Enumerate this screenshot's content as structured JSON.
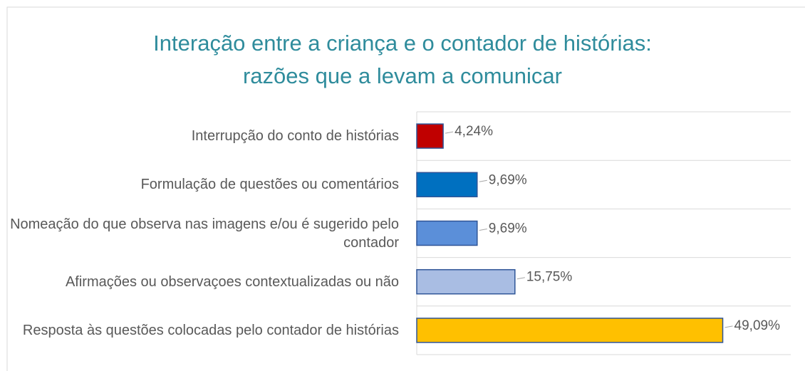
{
  "chart_data": {
    "type": "bar",
    "orientation": "horizontal",
    "title": "Interação entre a criança e o contador de histórias: razões que a levam a comunicar",
    "categories": [
      "Interrupção do conto de histórias",
      "Formulação de questões ou comentários",
      "Nomeação do que observa nas imagens e/ou é sugerido pelo contador",
      "Afirmações ou observaçoes contextualizadas ou não",
      "Resposta às questões colocadas pelo contador de histórias"
    ],
    "values": [
      4.24,
      9.69,
      9.69,
      15.75,
      49.09
    ],
    "value_labels": [
      "4,24%",
      "9,69%",
      "9,69%",
      "15,75%",
      "49,09%"
    ],
    "colors": [
      "#c00000",
      "#0070c0",
      "#5b8fd9",
      "#a9bde3",
      "#ffc000"
    ],
    "xlim": [
      0,
      60
    ],
    "grid": true
  }
}
